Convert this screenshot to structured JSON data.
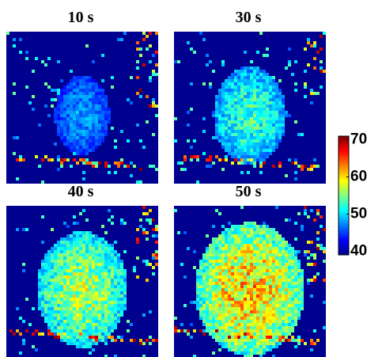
{
  "chart_data": [
    {
      "type": "heatmap",
      "title": "10 s"
    },
    {
      "type": "heatmap",
      "title": "30 s"
    },
    {
      "type": "heatmap",
      "title": "40 s"
    },
    {
      "type": "heatmap",
      "title": "50 s"
    },
    {
      "type": "colorbar",
      "clim": [
        39,
        71
      ],
      "ticks": [
        40,
        50,
        60,
        70
      ]
    }
  ]
}
